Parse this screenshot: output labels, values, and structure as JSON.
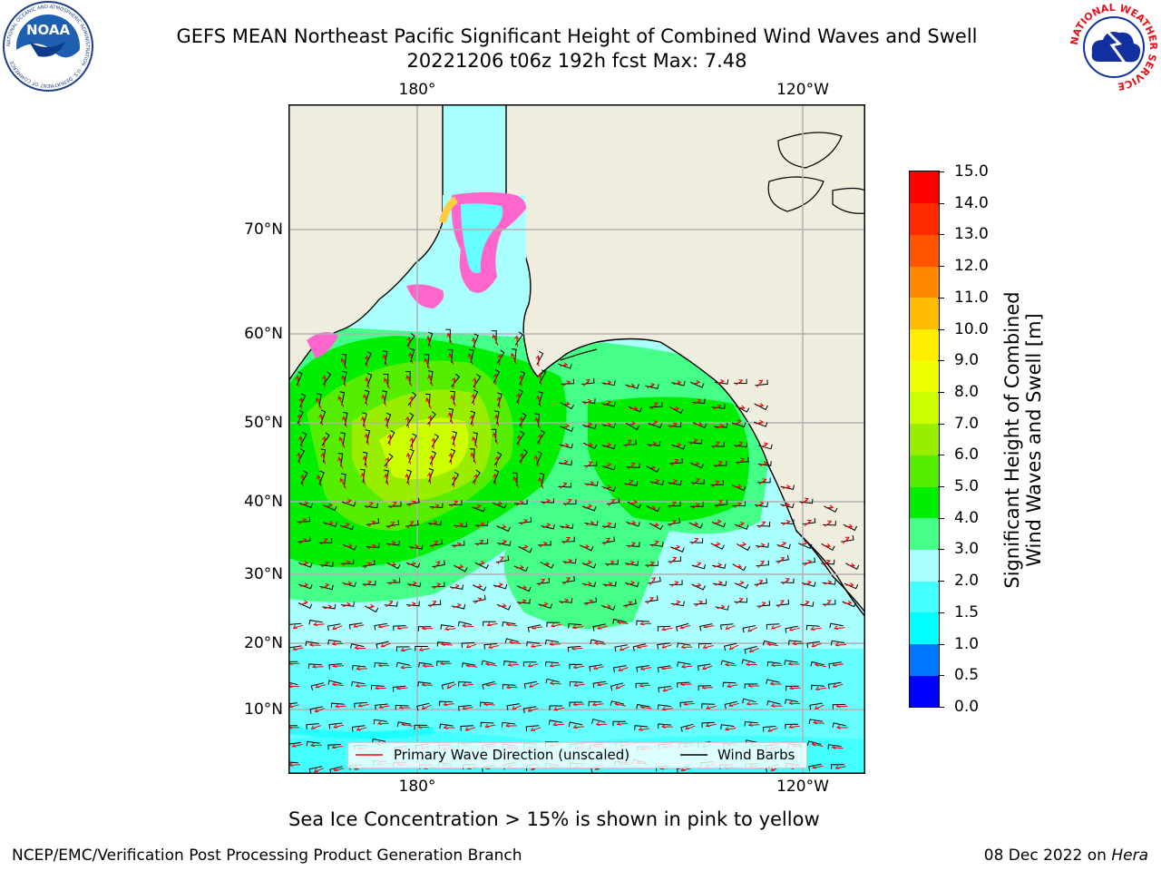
{
  "title": {
    "line1": "GEFS MEAN Northeast Pacific Significant Height of Combined Wind Waves and Swell",
    "line2": "20221206 t06z 192h fcst   Max: 7.48"
  },
  "logos": {
    "noaa_text": "NOAA",
    "noaa_ring": "NATIONAL OCEANIC AND ATMOSPHERIC ADMINISTRATION · U.S. DEPARTMENT OF COMMERCE",
    "nws_ring": "NATIONAL WEATHER SERVICE"
  },
  "map": {
    "lon_labels": [
      "180°",
      "120°W"
    ],
    "lat_labels": [
      "70°N",
      "60°N",
      "50°N",
      "40°N",
      "30°N",
      "20°N",
      "10°N"
    ],
    "legend": {
      "wave_direction": "Primary Wave Direction (unscaled)",
      "wind_barbs": "Wind Barbs",
      "wave_color": "#ff0000",
      "barb_color": "#000000"
    },
    "land_color": "#efedde"
  },
  "colorbar": {
    "title_line1": "Significant Height of Combined",
    "title_line2": "Wind Waves and Swell [m]",
    "labels": [
      "0.0",
      "0.5",
      "1.0",
      "1.5",
      "2.0",
      "3.0",
      "4.0",
      "5.0",
      "6.0",
      "7.0",
      "8.0",
      "9.0",
      "10.0",
      "11.0",
      "12.0",
      "13.0",
      "14.0",
      "15.0"
    ],
    "colors": [
      "#0000ff",
      "#0077ff",
      "#00ffff",
      "#44ffff",
      "#aaffff",
      "#44ff88",
      "#00ee00",
      "#55ee00",
      "#99ee00",
      "#ccff00",
      "#eeff00",
      "#ffee00",
      "#ffbb00",
      "#ff8800",
      "#ff5500",
      "#ff2a00",
      "#ff0000"
    ]
  },
  "footer": {
    "note": "Sea Ice Concentration > 15% is shown in pink to yellow",
    "credit": "NCEP/EMC/Verification Post Processing Product Generation Branch",
    "date_prefix": "08 Dec 2022 on ",
    "host": "Hera"
  }
}
